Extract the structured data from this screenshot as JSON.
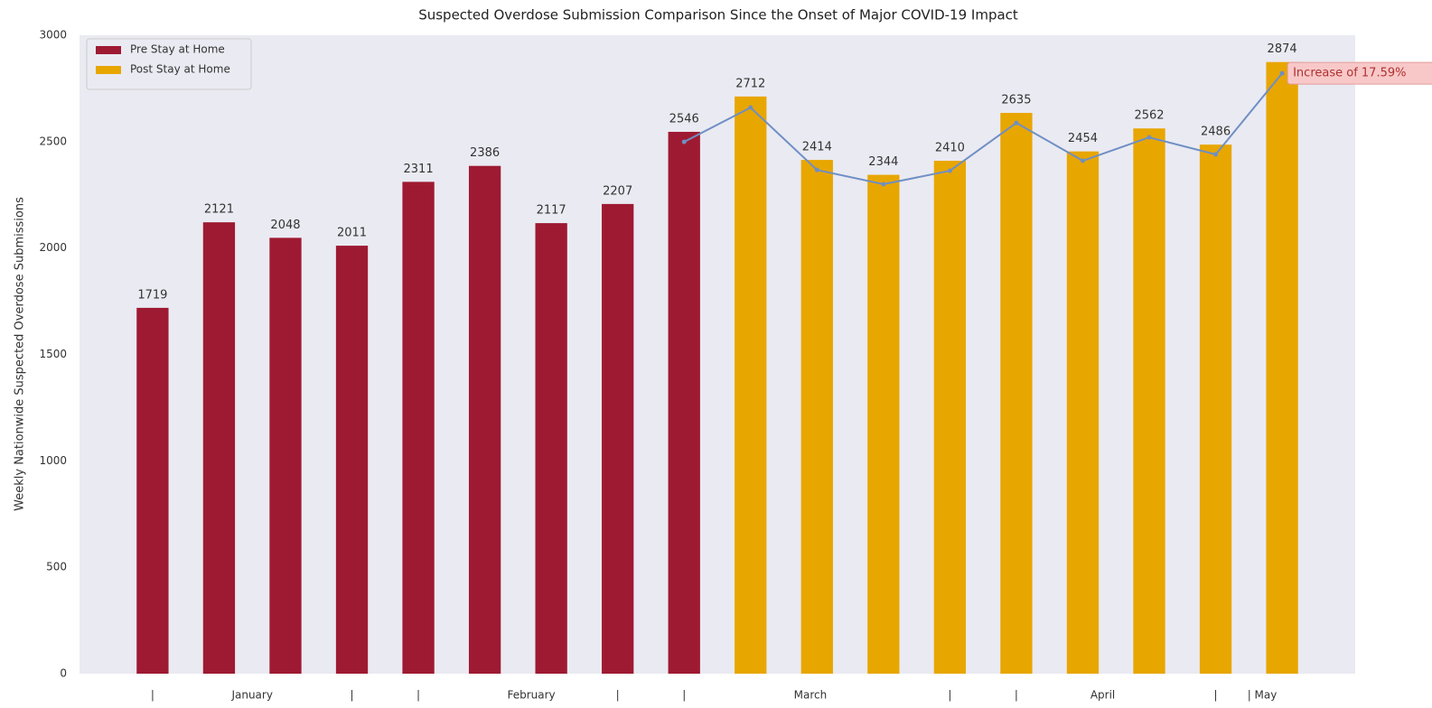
{
  "chart_data": {
    "type": "bar",
    "title": "Suspected Overdose Submission Comparison Since the Onset of Major COVID-19 Impact",
    "y_label": "Weekly Nationwide Suspected Overdose Submissions",
    "series": [
      {
        "name": "Pre Stay at Home",
        "color": "#9e1a32",
        "values": [
          1719,
          2121,
          2048,
          2011,
          2311,
          2386,
          2117,
          2207,
          2546,
          null,
          null,
          null,
          null,
          null,
          null,
          null,
          null,
          null
        ]
      },
      {
        "name": "Post Stay at Home",
        "color": "#e8a600",
        "values": [
          null,
          null,
          null,
          null,
          null,
          null,
          null,
          null,
          null,
          2712,
          2414,
          2344,
          2410,
          2635,
          2454,
          2562,
          2486,
          2874
        ]
      },
      {
        "type": "line",
        "color": "#6f8fc4",
        "values": [
          null,
          null,
          null,
          null,
          null,
          null,
          null,
          null,
          2499,
          2660,
          2367,
          2300,
          2363,
          2588,
          2410,
          2520,
          2440,
          2821
        ]
      }
    ],
    "annotation": "Increase of 17.59%",
    "xlim": [
      -1.1,
      18.1
    ],
    "xticks": [
      {
        "value": 0,
        "label": "|"
      },
      {
        "value": 1.5,
        "label": "January"
      },
      {
        "value": 3,
        "label": "|"
      },
      {
        "value": 4,
        "label": "|"
      },
      {
        "value": 5.7,
        "label": "February"
      },
      {
        "value": 7,
        "label": "|"
      },
      {
        "value": 8,
        "label": "|"
      },
      {
        "value": 9.9,
        "label": "March"
      },
      {
        "value": 12,
        "label": "|"
      },
      {
        "value": 13,
        "label": "|"
      },
      {
        "value": 14.3,
        "label": "April"
      },
      {
        "value": 16,
        "label": "|"
      },
      {
        "value": 16.7,
        "label": "| May"
      }
    ],
    "ylim": [
      0,
      3000
    ],
    "yticks": [
      0,
      500,
      1000,
      1500,
      2000,
      2500,
      3000
    ],
    "grid": false,
    "legend": "upper left"
  }
}
